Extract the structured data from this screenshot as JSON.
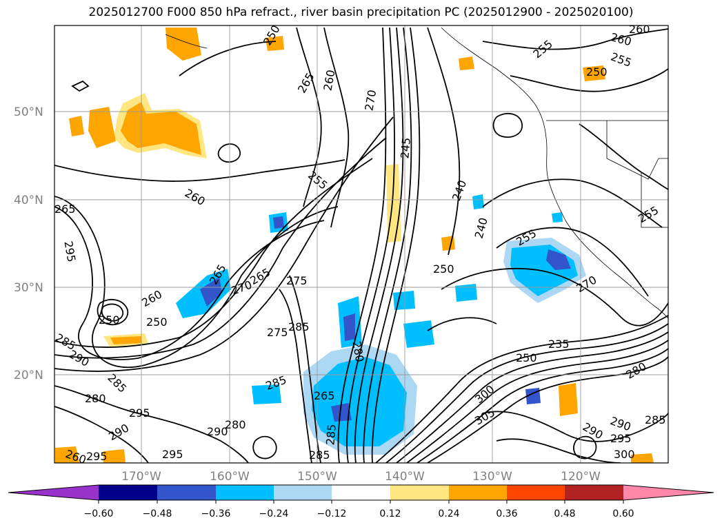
{
  "title": "2025012700 F000 850 hPa refract., river basin precipitation PC (2025012900 - 2025020100)",
  "lat_labels": [
    "50°N",
    "40°N",
    "30°N",
    "20°N"
  ],
  "lon_labels": [
    "170°W",
    "160°W",
    "150°W",
    "140°W",
    "130°W",
    "120°W"
  ],
  "contour_labels": [
    "265",
    "260",
    "265",
    "255",
    "250",
    "270",
    "245",
    "260",
    "255",
    "255",
    "240",
    "250",
    "260",
    "240",
    "255",
    "260",
    "255",
    "250",
    "270",
    "265",
    "275",
    "270",
    "265",
    "260",
    "250",
    "250",
    "285",
    "275",
    "285",
    "290",
    "295",
    "280",
    "235",
    "250",
    "280",
    "285",
    "285",
    "280",
    "290",
    "295",
    "265",
    "280",
    "290",
    "305",
    "300",
    "295",
    "290",
    "285",
    "300",
    "285",
    "295",
    "290",
    "285",
    "260",
    "295"
  ],
  "colorbar": {
    "ticks": [
      "−0.60",
      "−0.48",
      "−0.36",
      "−0.24",
      "−0.12",
      "0.12",
      "0.24",
      "0.36",
      "0.48",
      "0.60"
    ],
    "colors": [
      "#9933cc",
      "#00008b",
      "#3355cc",
      "#00bfff",
      "#add8f4",
      "#ffffff",
      "#ffe680",
      "#ffa500",
      "#ff4500",
      "#b22222",
      "#ff88aa"
    ]
  }
}
